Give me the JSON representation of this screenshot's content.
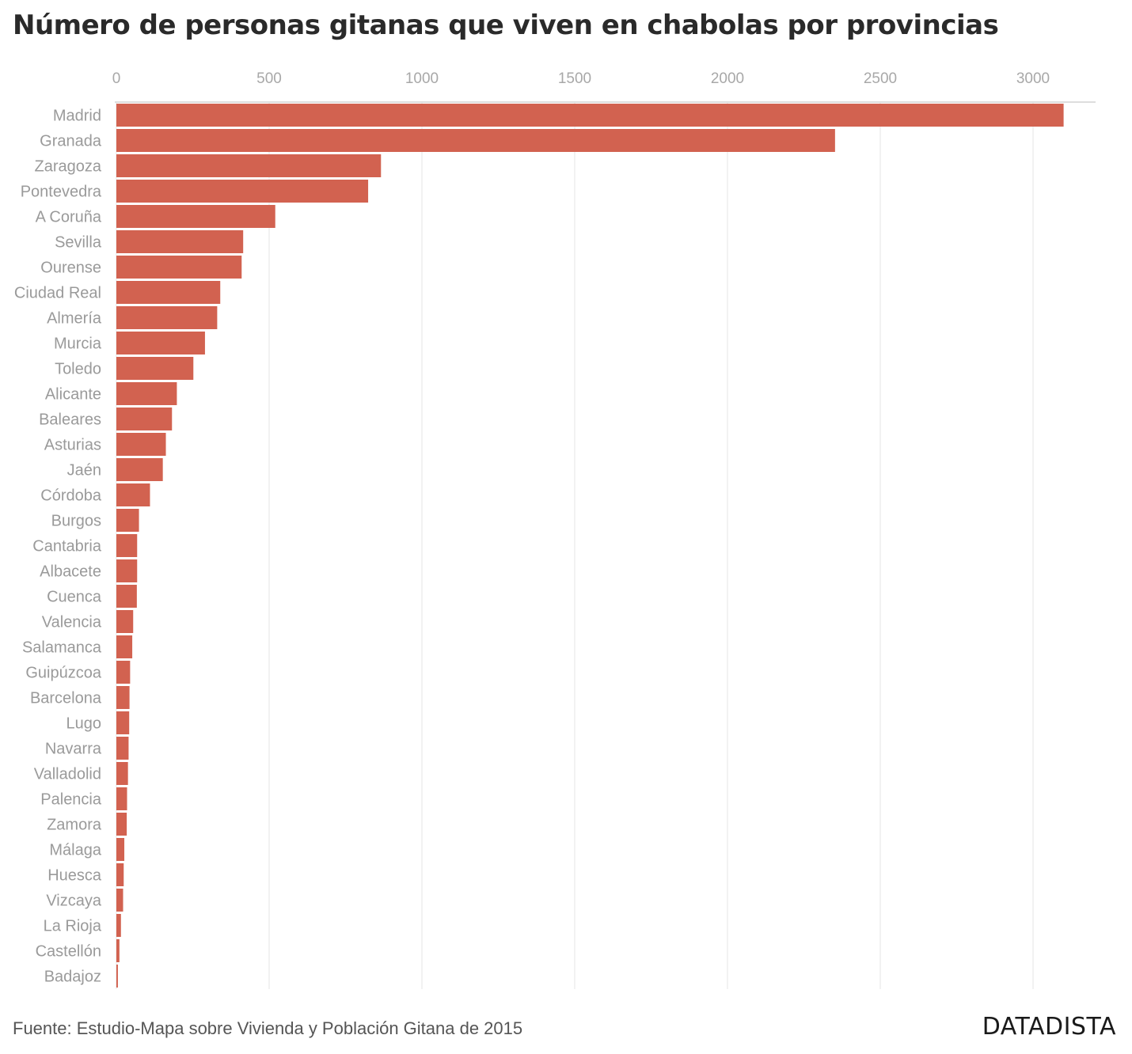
{
  "title": "Número de personas gitanas que viven en chabolas por provincias",
  "source": "Fuente: Estudio-Mapa sobre Vivienda y Población Gitana de 2015",
  "brand": "DATADISTA",
  "colors": {
    "bar": "#d26250",
    "grid": "#eeeeee",
    "axis": "#dddddd"
  },
  "chart_data": {
    "type": "bar",
    "orientation": "horizontal",
    "title": "Número de personas gitanas que viven en chabolas por provincias",
    "xlim": [
      0,
      3200
    ],
    "xticks": [
      0,
      500,
      1000,
      1500,
      2000,
      2500,
      3000
    ],
    "x_axis_position": "top",
    "grid": true,
    "categories": [
      "Madrid",
      "Granada",
      "Zaragoza",
      "Pontevedra",
      "A Coruña",
      "Sevilla",
      "Ourense",
      "Ciudad Real",
      "Almería",
      "Murcia",
      "Toledo",
      "Alicante",
      "Baleares",
      "Asturias",
      "Jaén",
      "Córdoba",
      "Burgos",
      "Cantabria",
      "Albacete",
      "Cuenca",
      "Valencia",
      "Salamanca",
      "Guipúzcoa",
      "Barcelona",
      "Lugo",
      "Navarra",
      "Valladolid",
      "Palencia",
      "Zamora",
      "Málaga",
      "Huesca",
      "Vizcaya",
      "La Rioja",
      "Castellón",
      "Badajoz"
    ],
    "values": [
      3100,
      2352,
      866,
      824,
      520,
      415,
      410,
      340,
      330,
      290,
      252,
      198,
      182,
      162,
      152,
      110,
      74,
      68,
      68,
      67,
      55,
      52,
      45,
      43,
      42,
      40,
      38,
      35,
      34,
      26,
      24,
      22,
      15,
      10,
      5
    ]
  }
}
